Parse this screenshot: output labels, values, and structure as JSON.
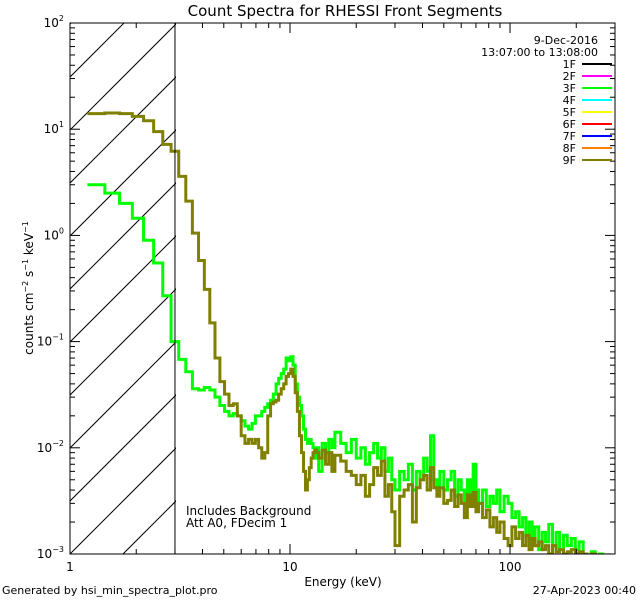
{
  "footer": {
    "generated_by": "Generated by hsi_min_spectra_plot.pro",
    "timestamp": "27-Apr-2023 00:40"
  },
  "chart_data": {
    "type": "line",
    "title": "Count Spectra for RHESSI Front Segments",
    "xlabel": "Energy (keV)",
    "ylabel_parts": {
      "counts": "counts cm",
      "exp1": "−2",
      "s": " s",
      "exp2": "−1",
      "kev": " keV",
      "exp3": "−1"
    },
    "x_scale": "log",
    "y_scale": "log",
    "xlim": [
      1,
      300
    ],
    "ylim": [
      0.001,
      100
    ],
    "x_ticks": [
      {
        "value": 1,
        "label": "1"
      },
      {
        "value": 10,
        "label": "10"
      },
      {
        "value": 100,
        "label": "100"
      }
    ],
    "y_ticks": [
      {
        "value": 0.001,
        "base": "10",
        "exp": "−3"
      },
      {
        "value": 0.01,
        "base": "10",
        "exp": "−2"
      },
      {
        "value": 0.1,
        "base": "10",
        "exp": "−1"
      },
      {
        "value": 1,
        "base": "10",
        "exp": "0"
      },
      {
        "value": 10,
        "base": "10",
        "exp": "1"
      },
      {
        "value": 100,
        "base": "10",
        "exp": "2"
      }
    ],
    "date": "9-Dec-2016",
    "time_range": "13:07:00 to 13:08:00",
    "hatched_region": {
      "from_keV": 1,
      "to_keV": 3
    },
    "annotations": [
      "Includes Background",
      "Att A0, FDecim 1"
    ],
    "legend": [
      {
        "label": "1F",
        "color": "#000000"
      },
      {
        "label": "2F",
        "color": "#ff00ff"
      },
      {
        "label": "3F",
        "color": "#00ff00"
      },
      {
        "label": "4F",
        "color": "#00ffff"
      },
      {
        "label": "5F",
        "color": "#ffff00"
      },
      {
        "label": "6F",
        "color": "#ff0000"
      },
      {
        "label": "7F",
        "color": "#0000ff"
      },
      {
        "label": "8F",
        "color": "#ff8000"
      },
      {
        "label": "9F",
        "color": "#808000"
      }
    ],
    "series": [
      {
        "name": "3F",
        "color": "#00ff00",
        "steps": [
          [
            1.2,
            3.0
          ],
          [
            1.44,
            2.5
          ],
          [
            1.68,
            2.0
          ],
          [
            1.92,
            1.45
          ],
          [
            2.16,
            0.9
          ],
          [
            2.4,
            0.55
          ],
          [
            2.64,
            0.27
          ],
          [
            2.88,
            0.1
          ],
          [
            3.12,
            0.068
          ],
          [
            3.36,
            0.052
          ],
          [
            3.6,
            0.036
          ],
          [
            3.84,
            0.035
          ],
          [
            4.08,
            0.037
          ],
          [
            4.32,
            0.035
          ],
          [
            4.56,
            0.03
          ],
          [
            4.8,
            0.025
          ],
          [
            5.04,
            0.022
          ],
          [
            5.28,
            0.02
          ],
          [
            5.52,
            0.021
          ],
          [
            5.76,
            0.02
          ],
          [
            6.0,
            0.018
          ],
          [
            6.24,
            0.016
          ],
          [
            6.48,
            0.015
          ],
          [
            6.72,
            0.017
          ],
          [
            6.96,
            0.02
          ],
          [
            7.2,
            0.02
          ],
          [
            7.44,
            0.022
          ],
          [
            7.68,
            0.024
          ],
          [
            7.92,
            0.026
          ],
          [
            8.16,
            0.028
          ],
          [
            8.4,
            0.032
          ],
          [
            8.64,
            0.04
          ],
          [
            8.88,
            0.045
          ],
          [
            9.12,
            0.05
          ],
          [
            9.36,
            0.055
          ],
          [
            9.6,
            0.07
          ],
          [
            9.84,
            0.066
          ],
          [
            10.08,
            0.072
          ],
          [
            10.32,
            0.06
          ],
          [
            10.56,
            0.04
          ],
          [
            10.8,
            0.03
          ],
          [
            11.04,
            0.025
          ],
          [
            11.28,
            0.02
          ],
          [
            11.52,
            0.015
          ],
          [
            11.76,
            0.012
          ],
          [
            12.0,
            0.011
          ],
          [
            12.24,
            0.012
          ],
          [
            12.48,
            0.011
          ],
          [
            12.72,
            0.01
          ],
          [
            12.96,
            0.008
          ],
          [
            13.2,
            0.01
          ],
          [
            13.5,
            0.006
          ],
          [
            14.0,
            0.011
          ],
          [
            14.5,
            0.009
          ],
          [
            15.0,
            0.012
          ],
          [
            15.5,
            0.01
          ],
          [
            16.0,
            0.014
          ],
          [
            17.0,
            0.011
          ],
          [
            18.0,
            0.009
          ],
          [
            19.0,
            0.012
          ],
          [
            20.0,
            0.008
          ],
          [
            21.0,
            0.01
          ],
          [
            22.0,
            0.007
          ],
          [
            23.0,
            0.009
          ],
          [
            24.0,
            0.011
          ],
          [
            25.0,
            0.008
          ],
          [
            26.0,
            0.01
          ],
          [
            27.0,
            0.006
          ],
          [
            28.0,
            0.008
          ],
          [
            29.0,
            0.005
          ],
          [
            30.0,
            0.004
          ],
          [
            31.5,
            0.006
          ],
          [
            33.0,
            0.005
          ],
          [
            34.5,
            0.007
          ],
          [
            36.0,
            0.004
          ],
          [
            37.5,
            0.006
          ],
          [
            39.0,
            0.005
          ],
          [
            40.5,
            0.008
          ],
          [
            42.0,
            0.006
          ],
          [
            43.5,
            0.013
          ],
          [
            45.0,
            0.005
          ],
          [
            46.5,
            0.004
          ],
          [
            48.0,
            0.006
          ],
          [
            50.0,
            0.004
          ],
          [
            52.0,
            0.005
          ],
          [
            54.0,
            0.006
          ],
          [
            56.0,
            0.0035
          ],
          [
            58.0,
            0.005
          ],
          [
            60.0,
            0.004
          ],
          [
            62.0,
            0.003
          ],
          [
            64.0,
            0.005
          ],
          [
            66.0,
            0.0035
          ],
          [
            68.0,
            0.007
          ],
          [
            70.0,
            0.004
          ],
          [
            72.0,
            0.003
          ],
          [
            75.0,
            0.004
          ],
          [
            78.0,
            0.0028
          ],
          [
            81.0,
            0.0035
          ],
          [
            84.0,
            0.003
          ],
          [
            87.0,
            0.004
          ],
          [
            90.0,
            0.0025
          ],
          [
            94.0,
            0.0035
          ],
          [
            98.0,
            0.003
          ],
          [
            102.0,
            0.0022
          ],
          [
            106.0,
            0.0025
          ],
          [
            110.0,
            0.0018
          ],
          [
            114.0,
            0.0022
          ],
          [
            118.0,
            0.0015
          ],
          [
            122.0,
            0.002
          ],
          [
            126.0,
            0.0012
          ],
          [
            130.0,
            0.0018
          ],
          [
            135.0,
            0.0011
          ],
          [
            140.0,
            0.0016
          ],
          [
            145.0,
            0.0013
          ],
          [
            150.0,
            0.0019
          ],
          [
            156.0,
            0.0012
          ],
          [
            162.0,
            0.0016
          ],
          [
            168.0,
            0.0011
          ],
          [
            175.0,
            0.0015
          ],
          [
            182.0,
            0.0012
          ],
          [
            190.0,
            0.0014
          ],
          [
            198.0,
            0.0011
          ],
          [
            206.0,
            0.0013
          ],
          [
            215.0,
            0.001
          ],
          [
            224.0,
            0.00095
          ],
          [
            234.0,
            0.00105
          ],
          [
            244.0,
            0.00092
          ],
          [
            254.0,
            0.001
          ],
          [
            264.0,
            0.00095
          ],
          [
            275.0,
            0.0009
          ],
          [
            285.0,
            0.00095
          ]
        ]
      },
      {
        "name": "9F",
        "color": "#808000",
        "steps": [
          [
            1.2,
            14.0
          ],
          [
            1.44,
            14.2
          ],
          [
            1.68,
            14.0
          ],
          [
            1.92,
            13.2
          ],
          [
            2.16,
            12.0
          ],
          [
            2.4,
            9.5
          ],
          [
            2.64,
            7.2
          ],
          [
            2.88,
            6.2
          ],
          [
            3.12,
            3.6
          ],
          [
            3.36,
            2.1
          ],
          [
            3.6,
            1.05
          ],
          [
            3.84,
            0.58
          ],
          [
            4.08,
            0.31
          ],
          [
            4.32,
            0.15
          ],
          [
            4.56,
            0.07
          ],
          [
            4.8,
            0.042
          ],
          [
            5.04,
            0.032
          ],
          [
            5.28,
            0.025
          ],
          [
            5.52,
            0.026
          ],
          [
            5.76,
            0.02
          ],
          [
            6.0,
            0.013
          ],
          [
            6.24,
            0.011
          ],
          [
            6.48,
            0.012
          ],
          [
            6.72,
            0.011
          ],
          [
            6.96,
            0.012
          ],
          [
            7.2,
            0.01
          ],
          [
            7.44,
            0.008
          ],
          [
            7.68,
            0.009
          ],
          [
            7.92,
            0.02
          ],
          [
            8.16,
            0.026
          ],
          [
            8.4,
            0.027
          ],
          [
            8.64,
            0.028
          ],
          [
            8.88,
            0.032
          ],
          [
            9.12,
            0.036
          ],
          [
            9.36,
            0.04
          ],
          [
            9.6,
            0.047
          ],
          [
            9.84,
            0.05
          ],
          [
            10.08,
            0.055
          ],
          [
            10.32,
            0.047
          ],
          [
            10.56,
            0.033
          ],
          [
            10.8,
            0.022
          ],
          [
            11.04,
            0.013
          ],
          [
            11.28,
            0.009
          ],
          [
            11.52,
            0.006
          ],
          [
            11.76,
            0.004
          ],
          [
            12.0,
            0.005
          ],
          [
            12.24,
            0.0065
          ],
          [
            12.48,
            0.008
          ],
          [
            12.72,
            0.009
          ],
          [
            12.96,
            0.0095
          ],
          [
            13.2,
            0.009
          ],
          [
            13.5,
            0.008
          ],
          [
            14.0,
            0.0095
          ],
          [
            14.5,
            0.007
          ],
          [
            15.0,
            0.009
          ],
          [
            15.5,
            0.006
          ],
          [
            16.0,
            0.0085
          ],
          [
            17.0,
            0.0075
          ],
          [
            18.0,
            0.006
          ],
          [
            19.0,
            0.0055
          ],
          [
            20.0,
            0.0045
          ],
          [
            21.0,
            0.0055
          ],
          [
            22.0,
            0.0035
          ],
          [
            23.0,
            0.0045
          ],
          [
            24.0,
            0.0065
          ],
          [
            25.0,
            0.0055
          ],
          [
            26.0,
            0.0075
          ],
          [
            27.0,
            0.0035
          ],
          [
            28.0,
            0.0045
          ],
          [
            29.0,
            0.0025
          ],
          [
            30.0,
            0.0012
          ],
          [
            31.5,
            0.0035
          ],
          [
            33.0,
            0.004
          ],
          [
            34.5,
            0.0045
          ],
          [
            36.0,
            0.002
          ],
          [
            37.5,
            0.0042
          ],
          [
            39.0,
            0.005
          ],
          [
            40.5,
            0.0055
          ],
          [
            42.0,
            0.004
          ],
          [
            43.5,
            0.0065
          ],
          [
            45.0,
            0.0042
          ],
          [
            46.5,
            0.0035
          ],
          [
            48.0,
            0.0042
          ],
          [
            50.0,
            0.003
          ],
          [
            52.0,
            0.0032
          ],
          [
            54.0,
            0.004
          ],
          [
            56.0,
            0.0028
          ],
          [
            58.0,
            0.0036
          ],
          [
            60.0,
            0.003
          ],
          [
            62.0,
            0.0022
          ],
          [
            64.0,
            0.0036
          ],
          [
            66.0,
            0.0028
          ],
          [
            68.0,
            0.0038
          ],
          [
            70.0,
            0.0025
          ],
          [
            72.0,
            0.003
          ],
          [
            75.0,
            0.0022
          ],
          [
            78.0,
            0.0026
          ],
          [
            81.0,
            0.0018
          ],
          [
            84.0,
            0.0022
          ],
          [
            87.0,
            0.0016
          ],
          [
            90.0,
            0.002
          ],
          [
            94.0,
            0.0014
          ],
          [
            98.0,
            0.0012
          ],
          [
            102.0,
            0.0018
          ],
          [
            106.0,
            0.0014
          ],
          [
            110.0,
            0.0016
          ],
          [
            114.0,
            0.0012
          ],
          [
            118.0,
            0.0015
          ],
          [
            122.0,
            0.0011
          ],
          [
            126.0,
            0.0014
          ],
          [
            130.0,
            0.0012
          ],
          [
            135.0,
            0.0013
          ],
          [
            140.0,
            0.0011
          ],
          [
            145.0,
            0.0012
          ],
          [
            150.0,
            0.001
          ],
          [
            156.0,
            0.0012
          ],
          [
            162.0,
            0.00105
          ],
          [
            168.0,
            0.0011
          ],
          [
            175.0,
            0.001
          ],
          [
            182.0,
            0.00105
          ],
          [
            190.0,
            0.0011
          ],
          [
            198.0,
            0.001
          ],
          [
            206.0,
            0.00105
          ],
          [
            215.0,
            0.001
          ],
          [
            224.0,
            0.00095
          ],
          [
            234.0,
            0.001
          ],
          [
            244.0,
            0.00095
          ],
          [
            254.0,
            0.00098
          ],
          [
            264.0,
            0.00092
          ],
          [
            275.0,
            0.00098
          ],
          [
            285.0,
            0.00094
          ]
        ]
      }
    ]
  }
}
